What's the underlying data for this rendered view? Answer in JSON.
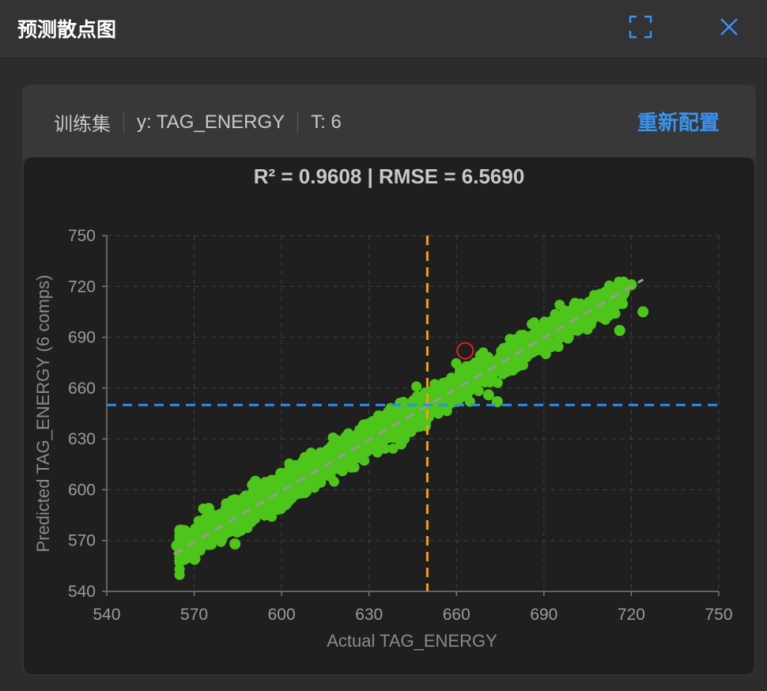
{
  "window": {
    "title": "预测散点图",
    "fullscreen_icon": "fullscreen-icon",
    "close_icon": "close-icon"
  },
  "header": {
    "dataset": "训练集",
    "target": "y: TAG_ENERGY",
    "components": "T: 6",
    "reconfig_label": "重新配置"
  },
  "colors": {
    "points": "#4ec51a",
    "highlight_ring": "#e02020",
    "reference_line": "#9a9a9a",
    "vline": "#f39c1e",
    "hline": "#2b8ff0",
    "accent": "#3a92f0"
  },
  "chart_data": {
    "type": "scatter",
    "title": "R² = 0.9608 | RMSE = 6.5690",
    "xlabel": "Actual TAG_ENERGY",
    "ylabel": "Predicted TAG_ENERGY (6 comps)",
    "xlim": [
      540,
      750
    ],
    "ylim": [
      540,
      750
    ],
    "xticks": [
      540,
      570,
      600,
      630,
      660,
      690,
      720,
      750
    ],
    "yticks": [
      540,
      570,
      600,
      630,
      660,
      690,
      720,
      750
    ],
    "grid": true,
    "reference_line": {
      "from": [
        563,
        562
      ],
      "to": [
        724,
        724
      ],
      "style": "dashed"
    },
    "vertical_line_x": 650,
    "horizontal_line_y": 650,
    "highlighted_point": {
      "x": 663,
      "y": 682
    },
    "band": {
      "x_start": 565,
      "x_end": 718,
      "spread": 4.5
    },
    "outliers": [
      {
        "x": 564,
        "y": 567
      },
      {
        "x": 575,
        "y": 589
      },
      {
        "x": 577,
        "y": 577
      },
      {
        "x": 584,
        "y": 568
      },
      {
        "x": 724,
        "y": 705
      },
      {
        "x": 674,
        "y": 652
      },
      {
        "x": 671,
        "y": 656
      },
      {
        "x": 641,
        "y": 627
      },
      {
        "x": 591,
        "y": 605
      },
      {
        "x": 720,
        "y": 721
      },
      {
        "x": 716,
        "y": 694
      }
    ]
  }
}
